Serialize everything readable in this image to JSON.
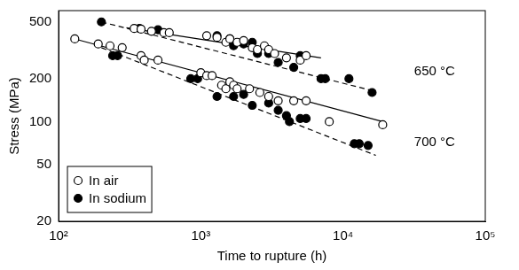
{
  "chart_data": {
    "type": "scatter",
    "x_label": "Time to rupture (h)",
    "y_label": "Stress (MPa)",
    "log": true,
    "grid": false,
    "legend": "bottom-left",
    "xlim": [
      100,
      100000
    ],
    "xticks": [
      {
        "value": 100,
        "label": "10²"
      },
      {
        "value": 1000,
        "label": "10³"
      },
      {
        "value": 10000,
        "label": "10⁴"
      },
      {
        "value": 100000,
        "label": "10⁵"
      }
    ],
    "ylim": [
      20,
      600
    ],
    "yticks": [
      20,
      50,
      100,
      200,
      500
    ],
    "series": [
      {
        "name": "In air",
        "marker": "open circle",
        "color": "#000000",
        "x": [
          340,
          380,
          450,
          550,
          600,
          1100,
          1300,
          1500,
          1600,
          1800,
          2000,
          2300,
          2500,
          2800,
          3000,
          3300,
          4000,
          5000,
          5500,
          130,
          190,
          230,
          280,
          380,
          400,
          500,
          1000,
          1100,
          1200,
          1400,
          1500,
          1600,
          1700,
          1800,
          2200,
          2600,
          3000,
          3500,
          4500,
          5500,
          8000,
          19000
        ],
        "values": [
          450,
          445,
          430,
          420,
          420,
          400,
          390,
          360,
          380,
          360,
          370,
          330,
          320,
          340,
          320,
          300,
          280,
          270,
          290,
          380,
          350,
          340,
          330,
          290,
          270,
          270,
          220,
          210,
          210,
          180,
          170,
          190,
          180,
          170,
          170,
          160,
          150,
          140,
          140,
          140,
          100,
          95
        ]
      },
      {
        "name": "In sodium",
        "marker": "filled circle",
        "color": "#000000",
        "x": [
          200,
          370,
          500,
          1300,
          1600,
          1700,
          2000,
          2300,
          2500,
          3000,
          3500,
          4500,
          5000,
          7000,
          7500,
          11000,
          16000,
          240,
          260,
          850,
          950,
          1300,
          1700,
          2000,
          2300,
          3000,
          3500,
          4000,
          4200,
          5000,
          5500,
          12000,
          13000,
          15000
        ],
        "values": [
          500,
          450,
          440,
          400,
          380,
          340,
          350,
          360,
          300,
          300,
          260,
          240,
          290,
          200,
          200,
          200,
          160,
          290,
          290,
          200,
          200,
          150,
          150,
          155,
          130,
          135,
          120,
          110,
          100,
          105,
          105,
          70,
          70,
          68
        ]
      },
      {
        "type": "line",
        "line_style": "solid",
        "color": "#000000",
        "x": [
          300,
          7000
        ],
        "values": [
          455,
          280
        ]
      },
      {
        "type": "line",
        "line_style": "dashed",
        "color": "#000000",
        "x": [
          200,
          16000
        ],
        "values": [
          500,
          165
        ]
      },
      {
        "type": "line",
        "line_style": "solid",
        "color": "#000000",
        "x": [
          130,
          19000
        ],
        "values": [
          380,
          100
        ]
      },
      {
        "type": "line",
        "line_style": "dashed",
        "color": "#000000",
        "x": [
          200,
          17000
        ],
        "values": [
          330,
          58
        ]
      }
    ],
    "annotations": [
      {
        "text": "650 °C",
        "x": 44000,
        "y": 225
      },
      {
        "text": "700 °C",
        "x": 44000,
        "y": 72
      }
    ]
  }
}
